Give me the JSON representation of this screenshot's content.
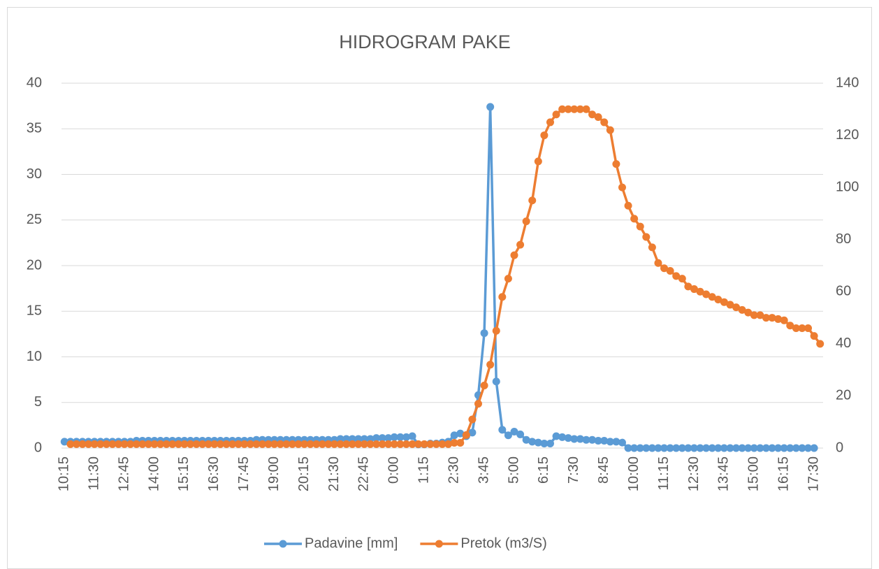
{
  "chart_data": {
    "type": "line",
    "title": "HIDROGRAM PAKE",
    "categories": [
      "10:15",
      null,
      null,
      null,
      null,
      "11:30",
      null,
      null,
      null,
      null,
      "12:45",
      null,
      null,
      null,
      null,
      "14:00",
      null,
      null,
      null,
      null,
      "15:15",
      null,
      null,
      null,
      null,
      "16:30",
      null,
      null,
      null,
      null,
      "17:45",
      null,
      null,
      null,
      null,
      "19:00",
      null,
      null,
      null,
      null,
      "20:15",
      null,
      null,
      null,
      null,
      "21:30",
      null,
      null,
      null,
      null,
      "22:45",
      null,
      null,
      null,
      null,
      "0:00",
      null,
      null,
      null,
      null,
      "1:15",
      null,
      null,
      null,
      null,
      "2:30",
      null,
      null,
      null,
      null,
      "3:45",
      null,
      null,
      null,
      null,
      "5:00",
      null,
      null,
      null,
      null,
      "6:15",
      null,
      null,
      null,
      null,
      "7:30",
      null,
      null,
      null,
      null,
      "8:45",
      null,
      null,
      null,
      null,
      "10:00",
      null,
      null,
      null,
      null,
      "11:15",
      null,
      null,
      null,
      null,
      "12:30",
      null,
      null,
      null,
      null,
      "13:45",
      null,
      null,
      null,
      null,
      "15:00",
      null,
      null,
      null,
      null,
      "16:15",
      null,
      null,
      null,
      null,
      "17:30",
      null
    ],
    "series": [
      {
        "name": "Padavine [mm]",
        "color": "#5b9bd5",
        "axis": "y",
        "values": [
          0.7,
          0.7,
          0.7,
          0.7,
          0.7,
          0.7,
          0.7,
          0.7,
          0.7,
          0.7,
          0.7,
          0.7,
          0.8,
          0.8,
          0.8,
          0.8,
          0.8,
          0.8,
          0.8,
          0.8,
          0.8,
          0.8,
          0.8,
          0.8,
          0.8,
          0.8,
          0.8,
          0.8,
          0.8,
          0.8,
          0.8,
          0.8,
          0.9,
          0.9,
          0.9,
          0.9,
          0.9,
          0.9,
          0.9,
          0.9,
          0.9,
          0.9,
          0.9,
          0.9,
          0.9,
          0.9,
          1.0,
          1.0,
          1.0,
          1.0,
          1.0,
          1.0,
          1.1,
          1.1,
          1.1,
          1.2,
          1.2,
          1.2,
          1.3,
          0.4,
          0.4,
          0.5,
          0.5,
          0.6,
          0.7,
          1.4,
          1.6,
          1.3,
          1.7,
          5.8,
          12.6,
          37.4,
          7.3,
          2.0,
          1.4,
          1.8,
          1.5,
          0.9,
          0.7,
          0.6,
          0.5,
          0.5,
          1.3,
          1.2,
          1.1,
          1.0,
          1.0,
          0.9,
          0.9,
          0.8,
          0.8,
          0.7,
          0.7,
          0.6,
          0,
          0,
          0,
          0,
          0,
          0,
          0,
          0,
          0,
          0,
          0,
          0,
          0,
          0,
          0,
          0,
          0,
          0,
          0,
          0,
          0,
          0,
          0,
          0,
          0,
          0,
          0,
          0,
          0,
          0,
          0,
          0,
          null
        ]
      },
      {
        "name": "Pretok (m3/S)",
        "color": "#ed7d31",
        "axis": "y2",
        "values": [
          null,
          1.5,
          1.5,
          1.5,
          1.5,
          1.5,
          1.5,
          1.5,
          1.5,
          1.5,
          1.5,
          1.5,
          1.5,
          1.5,
          1.5,
          1.5,
          1.5,
          1.5,
          1.5,
          1.5,
          1.5,
          1.5,
          1.5,
          1.5,
          1.5,
          1.5,
          1.5,
          1.5,
          1.5,
          1.5,
          1.5,
          1.5,
          1.5,
          1.5,
          1.5,
          1.5,
          1.5,
          1.5,
          1.5,
          1.5,
          1.5,
          1.5,
          1.5,
          1.5,
          1.5,
          1.5,
          1.5,
          1.5,
          1.5,
          1.5,
          1.5,
          1.5,
          1.5,
          1.5,
          1.5,
          1.5,
          1.5,
          1.5,
          1.5,
          1.5,
          1.5,
          1.5,
          1.5,
          1.5,
          1.5,
          2,
          2,
          5,
          11,
          17,
          24,
          32,
          45,
          58,
          65,
          74,
          78,
          87,
          95,
          110,
          120,
          125,
          128,
          130,
          130,
          130,
          130,
          130,
          128,
          127,
          125,
          122,
          109,
          100,
          93,
          88,
          85,
          81,
          77,
          71,
          69,
          68,
          66,
          65,
          62,
          61,
          60,
          59,
          58,
          57,
          56,
          55,
          54,
          53,
          52,
          51,
          51,
          50,
          50,
          49.5,
          49,
          47,
          46,
          46,
          46,
          43,
          40
        ]
      }
    ],
    "ylim": [
      0,
      40
    ],
    "yticks": [
      0,
      5,
      10,
      15,
      20,
      25,
      30,
      35,
      40
    ],
    "y2lim": [
      0,
      140
    ],
    "y2ticks": [
      0,
      20,
      40,
      60,
      80,
      100,
      120,
      140
    ],
    "grid": true,
    "legend": "bottom"
  }
}
